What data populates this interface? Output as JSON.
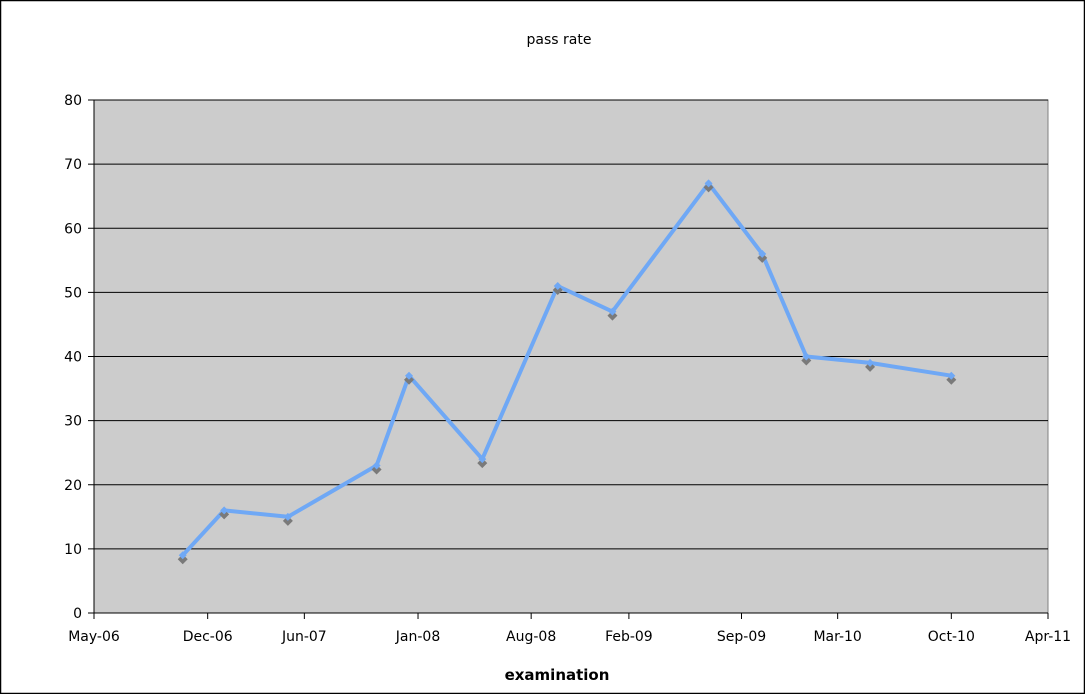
{
  "chart_data": {
    "type": "line",
    "title": "pass rate",
    "xlabel": "examination",
    "ylabel": "",
    "x_tick_labels": [
      "May-06",
      "Dec-06",
      "Jun-07",
      "Jan-08",
      "Aug-08",
      "Feb-09",
      "Sep-09",
      "Mar-10",
      "Oct-10",
      "Apr-11"
    ],
    "x_tick_dates": [
      "2006-05-01",
      "2006-12-01",
      "2007-06-01",
      "2008-01-01",
      "2008-08-01",
      "2009-02-01",
      "2009-09-01",
      "2010-03-01",
      "2010-10-01",
      "2011-04-01"
    ],
    "xlim": [
      "2006-05-01",
      "2011-04-01"
    ],
    "ylim": [
      0,
      80
    ],
    "y_ticks": [
      0,
      10,
      20,
      30,
      40,
      50,
      60,
      70,
      80
    ],
    "grid": "horizontal",
    "legend": "none",
    "series": [
      {
        "color": "#6fa8f5",
        "marker_color": "#7a7a7a",
        "x": [
          "2006-10-15",
          "2007-01-01",
          "2007-05-01",
          "2007-10-15",
          "2007-12-15",
          "2008-05-01",
          "2008-09-20",
          "2009-01-01",
          "2009-07-01",
          "2009-10-10",
          "2010-01-01",
          "2010-05-01",
          "2010-10-01"
        ],
        "values": [
          9,
          16,
          15,
          23,
          37,
          24,
          51,
          47,
          67,
          56,
          40,
          39,
          37
        ]
      }
    ],
    "colors": {
      "plot_background": "#cccccc",
      "gridline": "#000000",
      "frame": "#000000"
    }
  }
}
